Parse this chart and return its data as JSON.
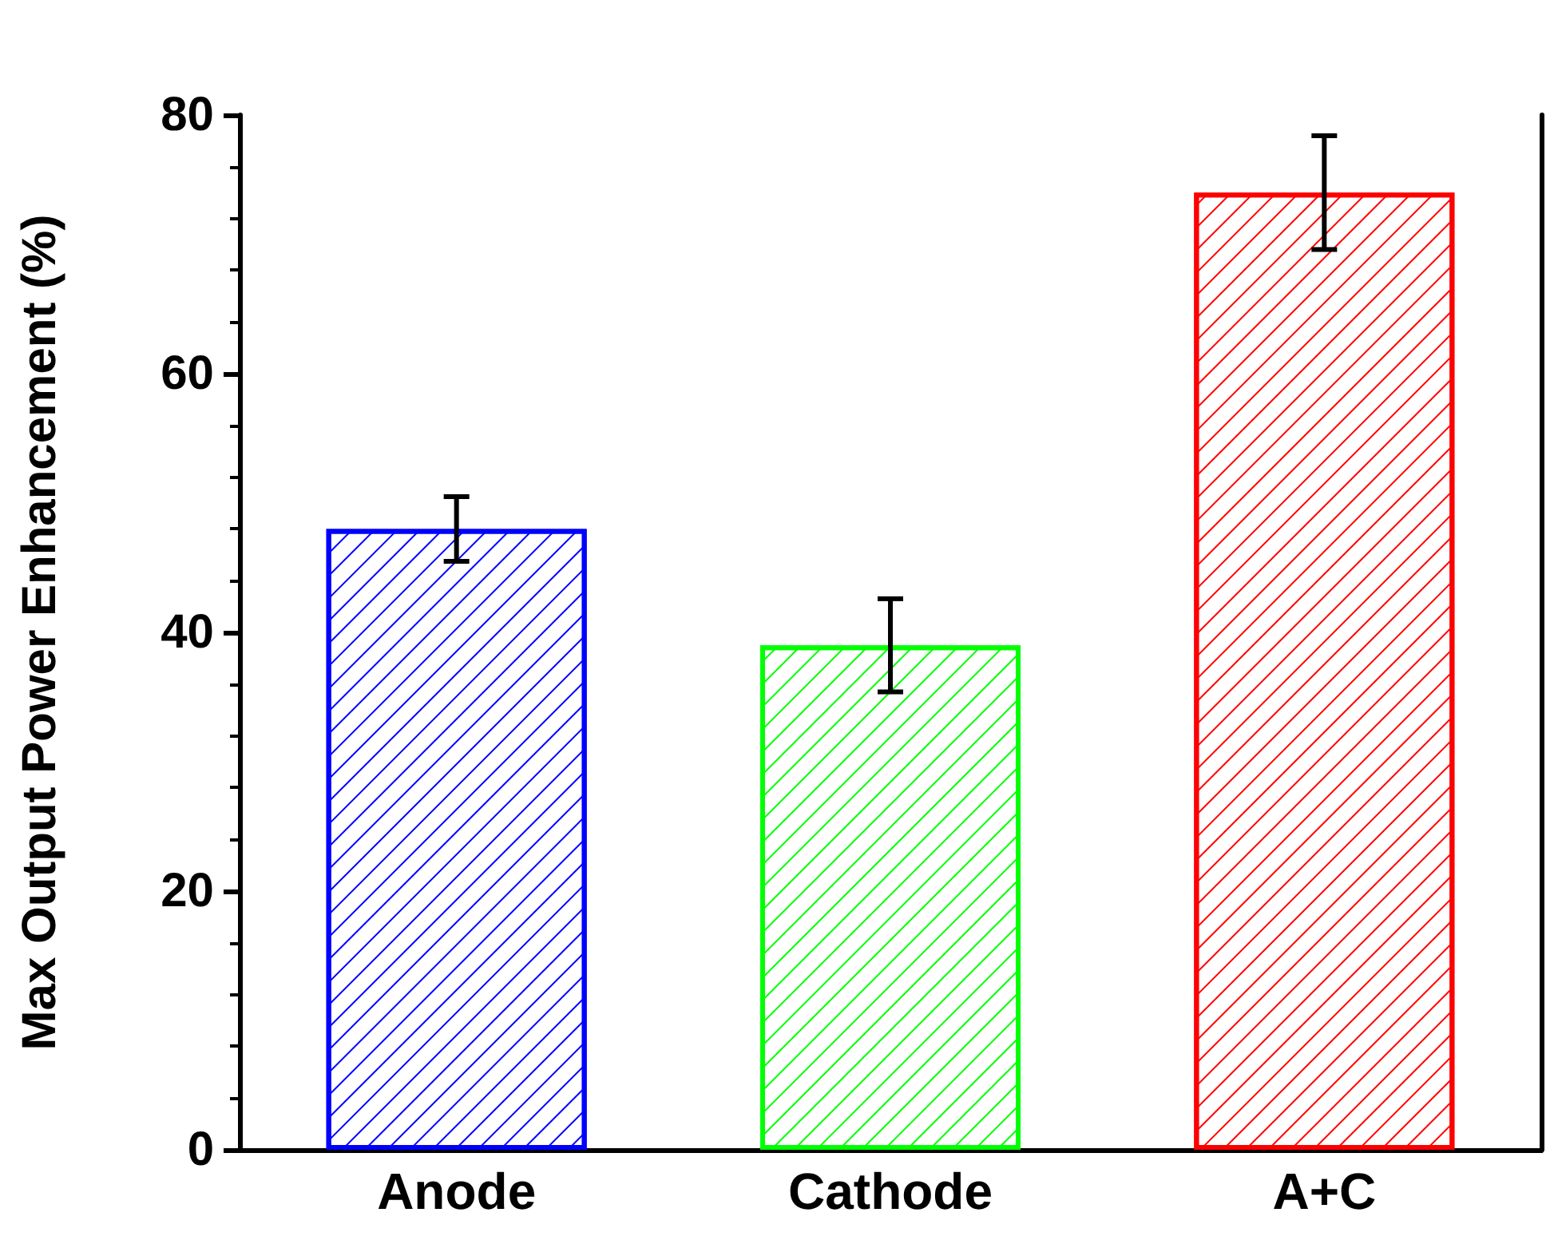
{
  "chart_data": {
    "type": "bar",
    "ylabel": "Max Output Power Enhancement (%)",
    "categories": [
      "Anode",
      "Cathode",
      "A+C"
    ],
    "values": [
      48,
      39,
      74
    ],
    "errors": [
      2.5,
      3.6,
      4.4
    ],
    "colors": [
      "#0000ff",
      "#00ff00",
      "#ff0000"
    ],
    "ylim": [
      0,
      80
    ],
    "yticks": [
      0,
      20,
      40,
      60,
      80
    ],
    "grid": false
  }
}
